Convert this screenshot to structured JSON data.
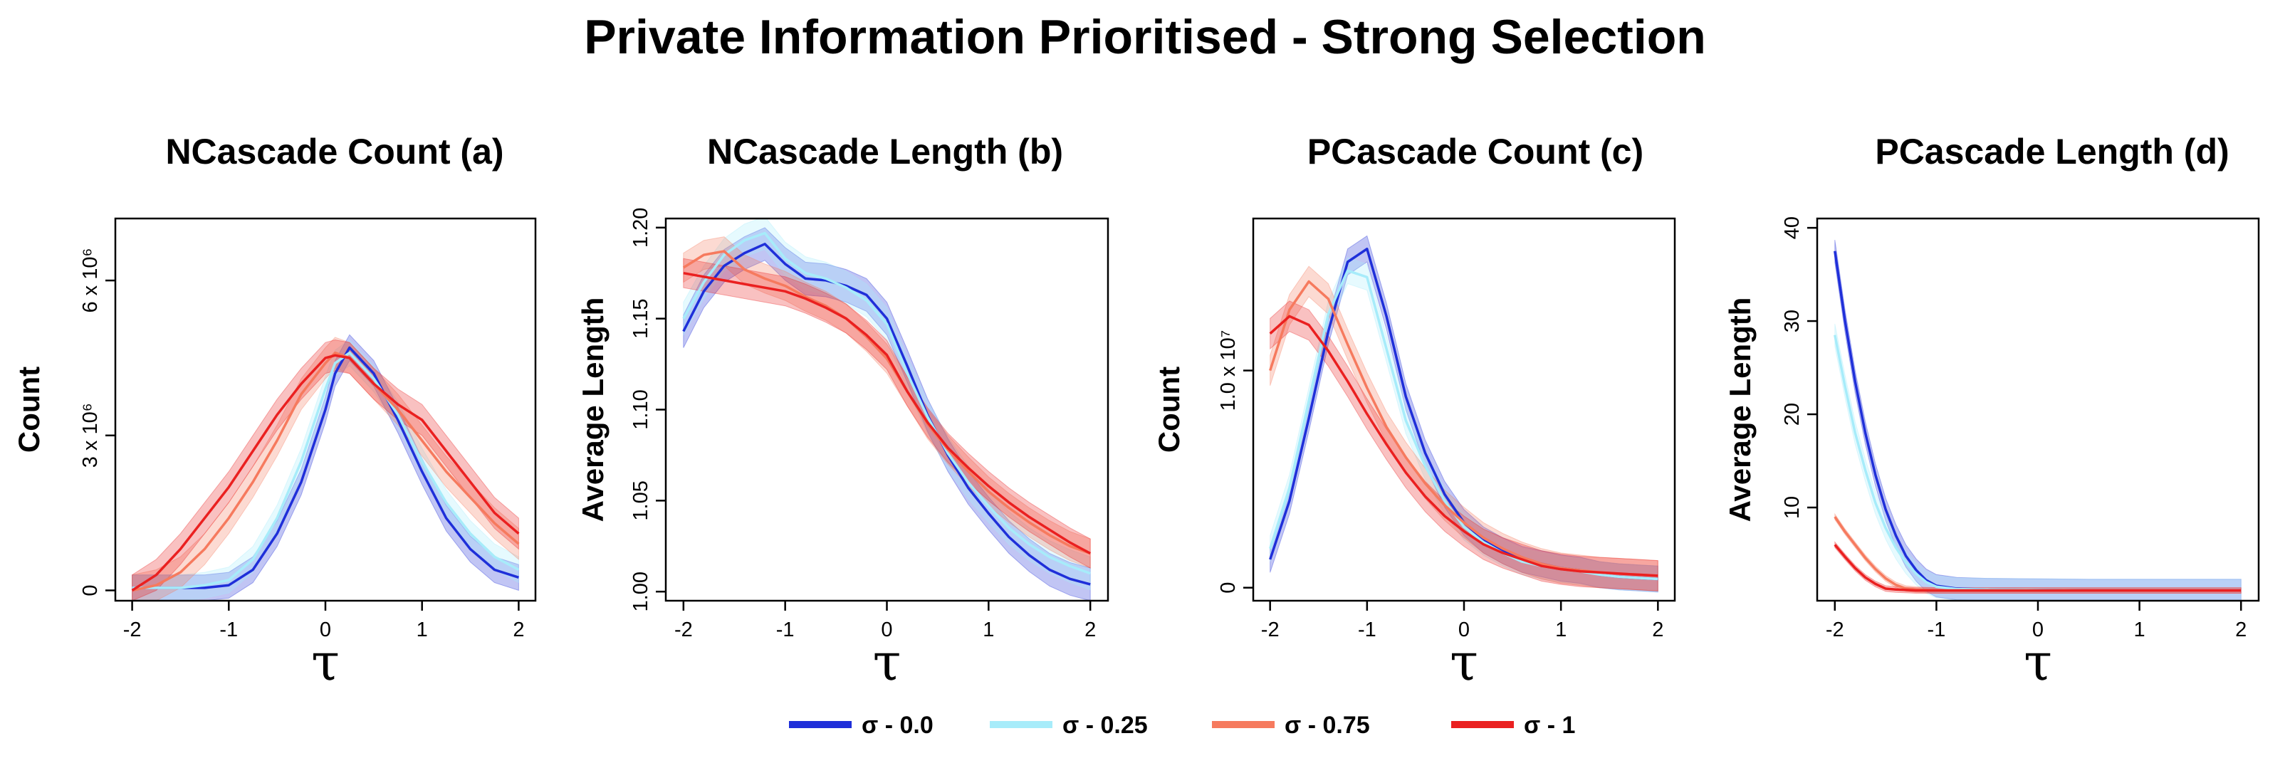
{
  "title": "Private Information Prioritised - Strong Selection",
  "legend": [
    {
      "label": "σ - 0.0",
      "color": "#1f2fd9"
    },
    {
      "label": "σ - 0.25",
      "color": "#a7ecfa"
    },
    {
      "label": "σ - 0.75",
      "color": "#f67a5e"
    },
    {
      "label": "σ - 1",
      "color": "#ea2020"
    }
  ],
  "chart_data": [
    {
      "type": "line",
      "title": "NCascade Count (a)",
      "xlabel": "τ",
      "ylabel": "Count",
      "xlim": [
        -2,
        2
      ],
      "ylim": [
        -0.2,
        7.2
      ],
      "xticks": [
        -2,
        -1,
        0,
        1,
        2
      ],
      "yticks": [
        {
          "value": 0,
          "label": "0"
        },
        {
          "value": 3,
          "label": "3 x 10⁶"
        },
        {
          "value": 6,
          "label": "6 x 10⁶"
        }
      ],
      "x": [
        -2.0,
        -1.75,
        -1.5,
        -1.25,
        -1.0,
        -0.75,
        -0.5,
        -0.25,
        0.0,
        0.1,
        0.25,
        0.5,
        0.75,
        1.0,
        1.25,
        1.5,
        1.75,
        2.0
      ],
      "series": [
        {
          "name": "σ - 0.0",
          "band": 0.25,
          "values": [
            0.05,
            0.05,
            0.05,
            0.05,
            0.1,
            0.4,
            1.1,
            2.1,
            3.5,
            4.2,
            4.7,
            4.2,
            3.3,
            2.3,
            1.4,
            0.8,
            0.4,
            0.25
          ]
        },
        {
          "name": "σ - 0.25",
          "band": 0.25,
          "values": [
            0.05,
            0.05,
            0.05,
            0.1,
            0.2,
            0.6,
            1.4,
            2.5,
            3.9,
            4.4,
            4.6,
            4.1,
            3.4,
            2.5,
            1.7,
            1.1,
            0.65,
            0.4
          ]
        },
        {
          "name": "σ - 0.75",
          "band": 0.3,
          "values": [
            0.0,
            0.1,
            0.35,
            0.8,
            1.4,
            2.1,
            2.9,
            3.8,
            4.4,
            4.6,
            4.5,
            4.0,
            3.5,
            2.9,
            2.3,
            1.8,
            1.3,
            0.9
          ]
        },
        {
          "name": "σ - 1",
          "band": 0.3,
          "values": [
            0.0,
            0.3,
            0.8,
            1.4,
            2.0,
            2.7,
            3.4,
            4.0,
            4.5,
            4.55,
            4.5,
            4.0,
            3.6,
            3.3,
            2.7,
            2.1,
            1.5,
            1.1
          ]
        }
      ]
    },
    {
      "type": "line",
      "title": "NCascade Length (b)",
      "xlabel": "τ",
      "ylabel": "Average Length",
      "xlim": [
        -2,
        2
      ],
      "ylim": [
        0.995,
        1.205
      ],
      "xticks": [
        -2,
        -1,
        0,
        1,
        2
      ],
      "yticks": [
        {
          "value": 1.0,
          "label": "1.00"
        },
        {
          "value": 1.05,
          "label": "1.05"
        },
        {
          "value": 1.1,
          "label": "1.10"
        },
        {
          "value": 1.15,
          "label": "1.15"
        },
        {
          "value": 1.2,
          "label": "1.20"
        }
      ],
      "x": [
        -2.0,
        -1.8,
        -1.6,
        -1.4,
        -1.2,
        -1.0,
        -0.8,
        -0.6,
        -0.4,
        -0.2,
        0.0,
        0.2,
        0.4,
        0.6,
        0.8,
        1.0,
        1.2,
        1.4,
        1.6,
        1.8,
        2.0
      ],
      "series": [
        {
          "name": "σ - 0.0",
          "band": 0.009,
          "values": [
            1.143,
            1.165,
            1.179,
            1.186,
            1.191,
            1.18,
            1.172,
            1.171,
            1.168,
            1.163,
            1.15,
            1.124,
            1.097,
            1.075,
            1.057,
            1.043,
            1.03,
            1.02,
            1.012,
            1.007,
            1.004
          ]
        },
        {
          "name": "σ - 0.25",
          "band": 0.009,
          "values": [
            1.15,
            1.17,
            1.185,
            1.193,
            1.197,
            1.183,
            1.175,
            1.172,
            1.167,
            1.16,
            1.147,
            1.12,
            1.096,
            1.076,
            1.06,
            1.047,
            1.035,
            1.026,
            1.019,
            1.014,
            1.01
          ]
        },
        {
          "name": "σ - 0.75",
          "band": 0.008,
          "values": [
            1.178,
            1.185,
            1.187,
            1.177,
            1.172,
            1.168,
            1.162,
            1.157,
            1.15,
            1.14,
            1.128,
            1.11,
            1.092,
            1.078,
            1.066,
            1.055,
            1.046,
            1.038,
            1.031,
            1.025,
            1.021
          ]
        },
        {
          "name": "σ - 1",
          "band": 0.008,
          "values": [
            1.175,
            1.173,
            1.171,
            1.169,
            1.167,
            1.165,
            1.161,
            1.156,
            1.15,
            1.141,
            1.13,
            1.11,
            1.093,
            1.079,
            1.068,
            1.058,
            1.049,
            1.041,
            1.034,
            1.027,
            1.021
          ]
        }
      ]
    },
    {
      "type": "line",
      "title": "PCascade Count (c)",
      "xlabel": "τ",
      "ylabel": "Count",
      "xlim": [
        -2,
        2
      ],
      "ylim": [
        -0.6,
        17.0
      ],
      "xticks": [
        -2,
        -1,
        0,
        1,
        2
      ],
      "yticks": [
        {
          "value": 0,
          "label": "0"
        },
        {
          "value": 10,
          "label": "1.0 x 10⁷"
        }
      ],
      "x": [
        -2.0,
        -1.8,
        -1.6,
        -1.4,
        -1.2,
        -1.0,
        -0.8,
        -0.6,
        -0.4,
        -0.2,
        0.0,
        0.2,
        0.4,
        0.6,
        0.8,
        1.0,
        1.2,
        1.4,
        1.6,
        1.8,
        2.0
      ],
      "series": [
        {
          "name": "σ - 0.0",
          "band": 0.6,
          "values": [
            1.3,
            4.0,
            7.8,
            11.8,
            15.0,
            15.6,
            12.5,
            8.8,
            6.2,
            4.3,
            3.0,
            2.2,
            1.7,
            1.3,
            1.1,
            0.9,
            0.8,
            0.6,
            0.5,
            0.45,
            0.4
          ]
        },
        {
          "name": "σ - 0.25",
          "band": 0.6,
          "values": [
            1.8,
            4.6,
            8.6,
            12.6,
            14.6,
            14.3,
            11.0,
            7.7,
            5.6,
            4.0,
            2.8,
            2.1,
            1.6,
            1.2,
            1.0,
            0.85,
            0.75,
            0.6,
            0.5,
            0.45,
            0.4
          ]
        },
        {
          "name": "σ - 0.75",
          "band": 0.7,
          "values": [
            10.0,
            12.8,
            14.1,
            13.3,
            11.2,
            9.2,
            7.4,
            6.0,
            4.8,
            3.8,
            3.0,
            2.3,
            1.8,
            1.4,
            1.1,
            0.9,
            0.8,
            0.7,
            0.65,
            0.6,
            0.55
          ]
        },
        {
          "name": "σ - 1",
          "band": 0.7,
          "values": [
            11.7,
            12.5,
            12.1,
            10.9,
            9.5,
            8.0,
            6.6,
            5.3,
            4.2,
            3.3,
            2.6,
            2.0,
            1.6,
            1.3,
            1.0,
            0.85,
            0.75,
            0.7,
            0.65,
            0.6,
            0.55
          ]
        }
      ]
    },
    {
      "type": "line",
      "title": "PCascade Length (d)",
      "xlabel": "τ",
      "ylabel": "Average Length",
      "xlim": [
        -2,
        2
      ],
      "ylim": [
        0,
        41
      ],
      "xticks": [
        -2,
        -1,
        0,
        1,
        2
      ],
      "yticks": [
        {
          "value": 10,
          "label": "10"
        },
        {
          "value": 20,
          "label": "20"
        },
        {
          "value": 30,
          "label": "30"
        },
        {
          "value": 40,
          "label": "40"
        }
      ],
      "x": [
        -2.0,
        -1.9,
        -1.8,
        -1.7,
        -1.6,
        -1.5,
        -1.4,
        -1.3,
        -1.2,
        -1.1,
        -1.0,
        -0.8,
        -0.5,
        0.0,
        0.5,
        1.0,
        1.5,
        2.0
      ],
      "series": [
        {
          "name": "σ - 0.0",
          "band": 1.2,
          "values": [
            37.5,
            30.0,
            23.5,
            18.0,
            13.5,
            9.8,
            7.0,
            4.8,
            3.3,
            2.2,
            1.6,
            1.3,
            1.2,
            1.15,
            1.1,
            1.1,
            1.1,
            1.1
          ]
        },
        {
          "name": "σ - 0.25",
          "band": 1.2,
          "values": [
            28.5,
            23.0,
            18.0,
            14.0,
            10.5,
            7.8,
            5.7,
            4.1,
            2.9,
            2.0,
            1.5,
            1.25,
            1.2,
            1.15,
            1.1,
            1.1,
            1.1,
            1.1
          ]
        },
        {
          "name": "σ - 0.75",
          "band": 0.3,
          "values": [
            9.0,
            7.4,
            6.0,
            4.6,
            3.4,
            2.4,
            1.7,
            1.3,
            1.2,
            1.15,
            1.1,
            1.1,
            1.1,
            1.1,
            1.1,
            1.1,
            1.1,
            1.1
          ]
        },
        {
          "name": "σ - 1",
          "band": 0.3,
          "values": [
            6.0,
            4.7,
            3.5,
            2.5,
            1.8,
            1.3,
            1.2,
            1.15,
            1.1,
            1.1,
            1.1,
            1.1,
            1.1,
            1.1,
            1.1,
            1.1,
            1.1,
            1.1
          ]
        }
      ]
    }
  ]
}
